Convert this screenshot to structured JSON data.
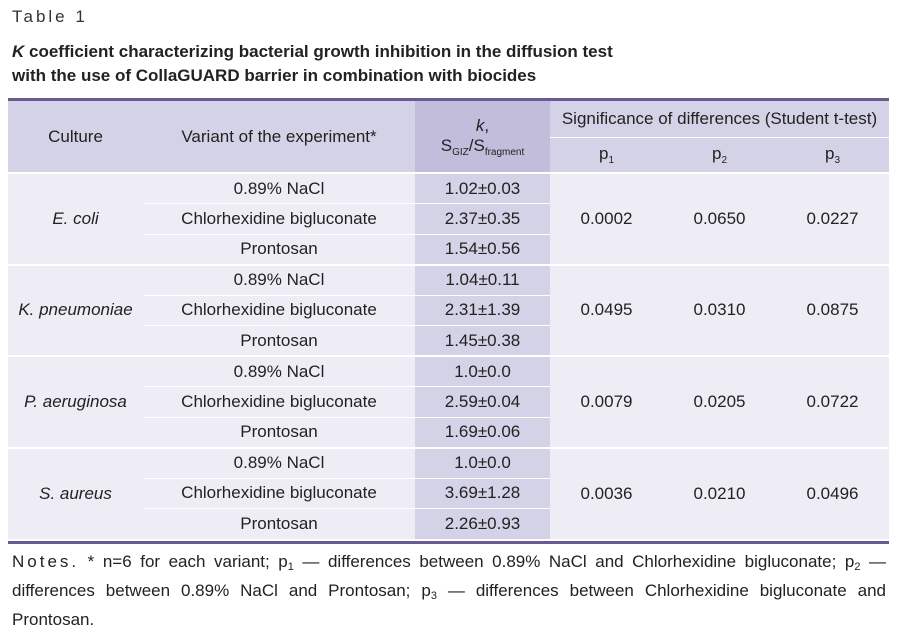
{
  "table_label": "Table 1",
  "caption": {
    "k": "K",
    "line1_rest": " coefficient characterizing bacterial growth inhibition in the diffusion test",
    "line2": "with the use of CollaGUARD barrier in combination with biocides"
  },
  "headers": {
    "culture": "Culture",
    "variant": "Variant of the experiment*",
    "k_symbol": "k",
    "k_comma": ",",
    "s1": "S",
    "s1_sub": "GIZ",
    "slash": "/",
    "s2": "S",
    "s2_sub": "fragment",
    "significance": "Significance of differences (Student t-test)",
    "p": "p",
    "p1_sub": "1",
    "p2_sub": "2",
    "p3_sub": "3"
  },
  "groups": [
    {
      "culture": "E. coli",
      "rows": [
        {
          "variant": "0.89% NaCl",
          "k": "1.02±0.03"
        },
        {
          "variant": "Chlorhexidine bigluconate",
          "k": "2.37±0.35"
        },
        {
          "variant": "Prontosan",
          "k": "1.54±0.56"
        }
      ],
      "p1": "0.0002",
      "p2": "0.0650",
      "p3": "0.0227"
    },
    {
      "culture": "K. pneumoniae",
      "rows": [
        {
          "variant": "0.89% NaCl",
          "k": "1.04±0.11"
        },
        {
          "variant": "Chlorhexidine bigluconate",
          "k": "2.31±1.39"
        },
        {
          "variant": "Prontosan",
          "k": "1.45±0.38"
        }
      ],
      "p1": "0.0495",
      "p2": "0.0310",
      "p3": "0.0875"
    },
    {
      "culture": "P. aeruginosa",
      "rows": [
        {
          "variant": "0.89% NaCl",
          "k": "1.0±0.0"
        },
        {
          "variant": "Chlorhexidine bigluconate",
          "k": "2.59±0.04"
        },
        {
          "variant": "Prontosan",
          "k": "1.69±0.06"
        }
      ],
      "p1": "0.0079",
      "p2": "0.0205",
      "p3": "0.0722"
    },
    {
      "culture": "S. aureus",
      "rows": [
        {
          "variant": "0.89% NaCl",
          "k": "1.0±0.0"
        },
        {
          "variant": "Chlorhexidine bigluconate",
          "k": "3.69±1.28"
        },
        {
          "variant": "Prontosan",
          "k": "2.26±0.93"
        }
      ],
      "p1": "0.0036",
      "p2": "0.0210",
      "p3": "0.0496"
    }
  ],
  "notes": {
    "label": "Notes.",
    "t1": " * n=6 for each variant; p",
    "s1": "1",
    "t2": " — differences between 0.89% NaCl and Chlorhexidine bigluconate; p",
    "s2": "2",
    "t3": " — differences between 0.89% NaCl and Prontosan; p",
    "s3": "3",
    "t4": " — differences between Chlorhexidine bigluconate and Prontosan."
  },
  "colors": {
    "rule": "#6b5b95",
    "header_bg": "#d4d2e6",
    "k_header_bg": "#c2bddb",
    "body_bg": "#eeedf6",
    "k_body_bg": "#d4d2e6"
  }
}
